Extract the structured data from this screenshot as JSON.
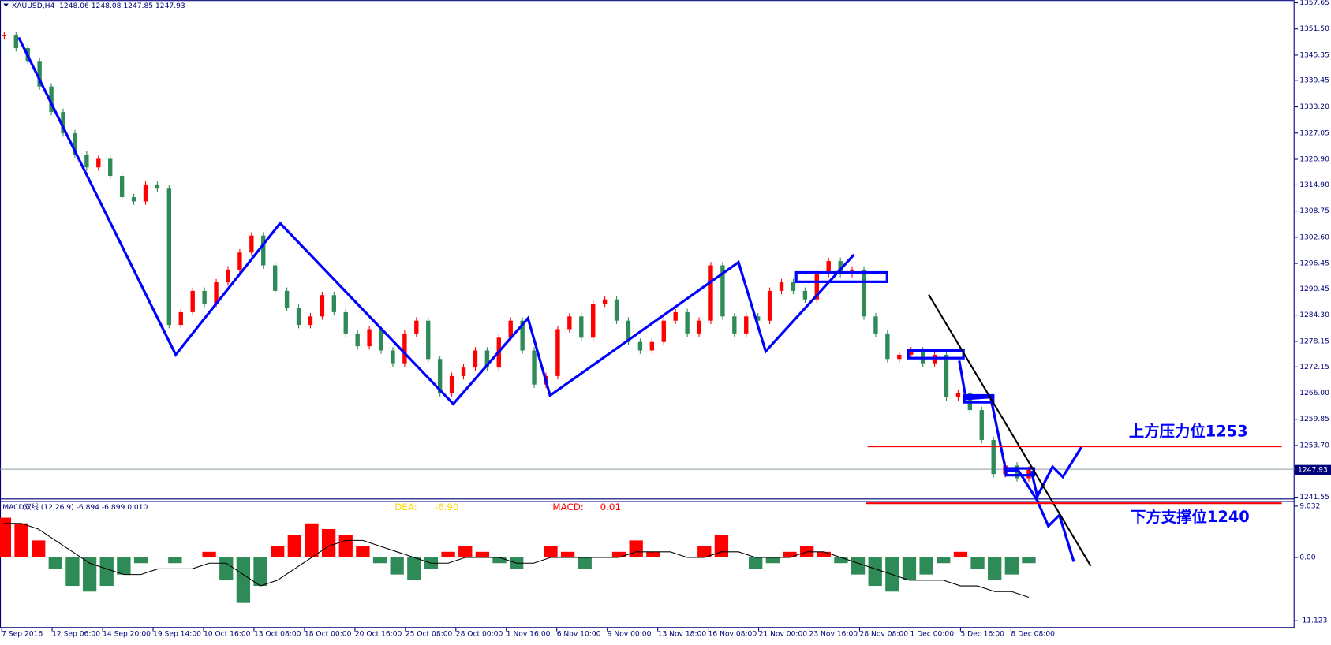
{
  "chart_data": {
    "type": "candlestick",
    "header": "XAUUSD,H4  1248.06 1248.08 1247.85 1247.93",
    "closes": [
      1350,
      1347,
      1344,
      1338,
      1332,
      1327,
      1322,
      1319,
      1321,
      1317,
      1312,
      1311,
      1315,
      1314,
      1282,
      1285,
      1290,
      1287,
      1292,
      1295,
      1299,
      1303,
      1296,
      1290,
      1286,
      1282,
      1284,
      1289,
      1285,
      1280,
      1277,
      1281,
      1276,
      1273,
      1280,
      1283,
      1274,
      1266,
      1270,
      1272,
      1276,
      1272,
      1279,
      1283,
      1276,
      1268,
      1270,
      1281,
      1284,
      1279,
      1287,
      1288,
      1283,
      1278,
      1276,
      1278,
      1283,
      1285,
      1280,
      1283,
      1296,
      1284,
      1280,
      1284,
      1283,
      1290,
      1292,
      1290,
      1288,
      1294,
      1297,
      1294,
      1295,
      1284,
      1280,
      1274,
      1275,
      1276,
      1273,
      1275,
      1265,
      1266,
      1262,
      1255,
      1247,
      1249,
      1246,
      1248
    ],
    "up_color": "#ff0000",
    "down_color": "#2e8b57",
    "ylim": [
      1241.14,
      1358.27
    ],
    "yticks": [
      1357.65,
      {
        "value": 1351.5,
        "label": "1351.50"
      },
      1345.35,
      1339.45,
      {
        "value": 1333.2,
        "label": "1333.20"
      },
      1327.05,
      {
        "value": 1320.9,
        "label": "1320.90"
      },
      {
        "value": 1314.9,
        "label": "1314.90"
      },
      1308.75,
      {
        "value": 1302.6,
        "label": "1302.60"
      },
      1296.45,
      1290.45,
      {
        "value": 1284.3,
        "label": "1284.30"
      },
      1278.15,
      1272.15,
      {
        "value": 1266,
        "label": "1266.00"
      },
      1259.85,
      {
        "value": 1253.7,
        "label": "1253.70"
      },
      1241.55
    ],
    "last_price": 1247.93,
    "x_labels": [
      "7 Sep 2016",
      "12 Sep 06:00",
      "14 Sep 20:00",
      "19 Sep 14:00",
      "10 Oct 16:00",
      "13 Oct 08:00",
      "18 Oct 00:00",
      "20 Oct 16:00",
      "25 Oct 08:00",
      "28 Oct 00:00",
      "1 Nov 16:00",
      "6 Nov 10:00",
      "9 Nov 00:00",
      "13 Nov 18:00",
      "16 Nov 08:00",
      "21 Nov 00:00",
      "23 Nov 16:00",
      "28 Nov 08:00",
      "1 Dec 00:00",
      "5 Dec 16:00",
      "8 Dec 08:00"
    ],
    "annotations": [
      "上方压力位1253",
      "下方支撑位1240"
    ],
    "macd": {
      "title": "MACD双线 (12,26,9) -6.894 -6.899 0.010",
      "dea_label": "DEA:",
      "dea_value": -6.9,
      "dea_value_label": "-6.90",
      "macd_label": "MACD:",
      "macd_value": 0.01,
      "histogram": [
        7,
        6,
        3,
        -2,
        -5,
        -6,
        -5,
        -3,
        -1,
        0,
        -1,
        0,
        1,
        -4,
        -8,
        -5,
        2,
        4,
        6,
        5,
        4,
        2,
        -1,
        -3,
        -4,
        -2,
        1,
        2,
        1,
        -1,
        -2,
        0,
        2,
        1,
        -2,
        0,
        1,
        3,
        1,
        0,
        0,
        2,
        4,
        0,
        -2,
        -1,
        1,
        2,
        1,
        -1,
        -3,
        -5,
        -6,
        -4,
        -3,
        -1,
        1,
        -2,
        -4,
        -3,
        -1
      ],
      "dea": [
        6,
        6,
        5,
        3,
        1,
        -1,
        -2,
        -3,
        -3,
        -2,
        -2,
        -2,
        -1,
        -1,
        -3,
        -5,
        -4,
        -2,
        0,
        2,
        3,
        3,
        2,
        1,
        0,
        -1,
        -1,
        0,
        0,
        0,
        -1,
        -1,
        0,
        0,
        0,
        0,
        0,
        1,
        1,
        1,
        0,
        0,
        1,
        1,
        0,
        0,
        0,
        1,
        1,
        0,
        -1,
        -2,
        -3,
        -4,
        -4,
        -4,
        -5,
        -5,
        -6,
        -6,
        -7
      ],
      "ylim": [
        -12.39,
        9.85
      ],
      "yticks": [
        9.032,
        {
          "value": 0,
          "label": "0.00"
        },
        -11.123
      ]
    }
  }
}
